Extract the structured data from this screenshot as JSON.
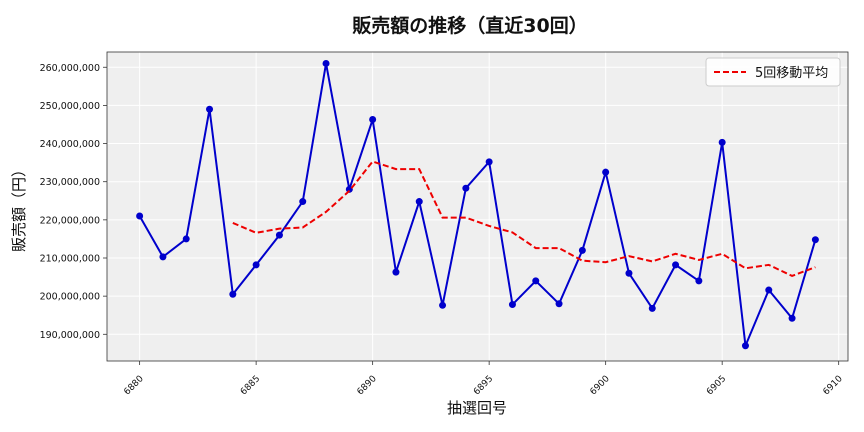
{
  "chart_data": {
    "type": "line",
    "title": "販売額の推移（直近30回）",
    "xlabel": "抽選回号",
    "ylabel": "販売額（円）",
    "xlim": [
      6878.6,
      6910.4
    ],
    "ylim": [
      183000000,
      264000000
    ],
    "x_ticks": [
      6880,
      6885,
      6890,
      6895,
      6900,
      6905,
      6910
    ],
    "y_ticks": [
      190000000,
      200000000,
      210000000,
      220000000,
      230000000,
      240000000,
      250000000,
      260000000
    ],
    "y_tick_labels": [
      "190,000,000",
      "200,000,000",
      "210,000,000",
      "220,000,000",
      "230,000,000",
      "240,000,000",
      "250,000,000",
      "260,000,000"
    ],
    "grid": true,
    "legend_position": "top-right",
    "x": [
      6880,
      6881,
      6882,
      6883,
      6884,
      6885,
      6886,
      6887,
      6888,
      6889,
      6890,
      6891,
      6892,
      6893,
      6894,
      6895,
      6896,
      6897,
      6898,
      6899,
      6900,
      6901,
      6902,
      6903,
      6904,
      6905,
      6906,
      6907,
      6908,
      6909
    ],
    "series": [
      {
        "name": "",
        "color": "#0000cc",
        "style": "solid-markers",
        "values": [
          221000000,
          210300000,
          215000000,
          249000000,
          200500000,
          208200000,
          216000000,
          224800000,
          261000000,
          228000000,
          246300000,
          206300000,
          224800000,
          197600000,
          228300000,
          235200000,
          197800000,
          204000000,
          198000000,
          212000000,
          232500000,
          206000000,
          196800000,
          208200000,
          204000000,
          240300000,
          187000000,
          201600000,
          194200000,
          214800000
        ]
      },
      {
        "name": "5回移動平均",
        "color": "#ee0000",
        "style": "dashed",
        "values": [
          null,
          null,
          null,
          null,
          219200000,
          216600000,
          217700000,
          218000000,
          222100000,
          227600000,
          235300000,
          233300000,
          233300000,
          220600000,
          220600000,
          218400000,
          216700000,
          212600000,
          212600000,
          209300000,
          208900000,
          210500000,
          209100000,
          211100000,
          209500000,
          211100000,
          207300000,
          208200000,
          205300000,
          207600000
        ]
      }
    ]
  },
  "colors": {
    "background": "#ffffff",
    "plot_bg": "#efefef",
    "grid": "#ffffff"
  }
}
